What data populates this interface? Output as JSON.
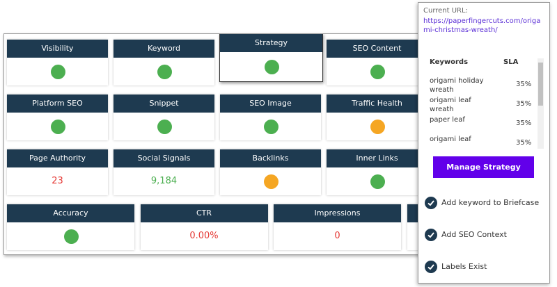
{
  "rows": [
    [
      {
        "title": "Visibility",
        "indicator": "#4caf50"
      },
      {
        "title": "Keyword",
        "indicator": "#4caf50"
      },
      {
        "title": "Strategy",
        "indicator": "#4caf50",
        "selected": true
      },
      {
        "title": "SEO Content",
        "indicator": "#4caf50"
      }
    ],
    [
      {
        "title": "Platform SEO",
        "indicator": "#4caf50"
      },
      {
        "title": "Snippet",
        "indicator": "#4caf50"
      },
      {
        "title": "SEO Image",
        "indicator": "#4caf50"
      },
      {
        "title": "Traffic Health",
        "indicator": "#f5a623"
      }
    ],
    [
      {
        "title": "Page Authority",
        "value": "23",
        "value_color": "#e53935"
      },
      {
        "title": "Social Signals",
        "value": "9,184",
        "value_color": "#4caf50"
      },
      {
        "title": "Backlinks",
        "indicator": "#f5a623"
      },
      {
        "title": "Inner Links",
        "indicator": "#4caf50"
      }
    ],
    [
      {
        "title": "Accuracy",
        "indicator": "#4caf50"
      },
      {
        "title": "CTR",
        "value": "0.00%",
        "value_color": "#e53935"
      },
      {
        "title": "Impressions",
        "value": "0",
        "value_color": "#e53935"
      }
    ]
  ],
  "popup": {
    "url_label": "Current URL:",
    "url": "https://paperfingercuts.com/origami-christmas-wreath/",
    "table": {
      "headers": [
        "Keywords",
        "SLA"
      ],
      "rows": [
        [
          "origami holiday wreath",
          "35%"
        ],
        [
          "origami leaf wreath",
          "35%"
        ],
        [
          "paper leaf",
          "35%"
        ],
        [
          "origami leaf",
          "35%"
        ]
      ]
    },
    "button": "Manage Strategy",
    "checklist": [
      "Add keyword to Briefcase",
      "Add SEO Context",
      "Labels Exist"
    ]
  }
}
